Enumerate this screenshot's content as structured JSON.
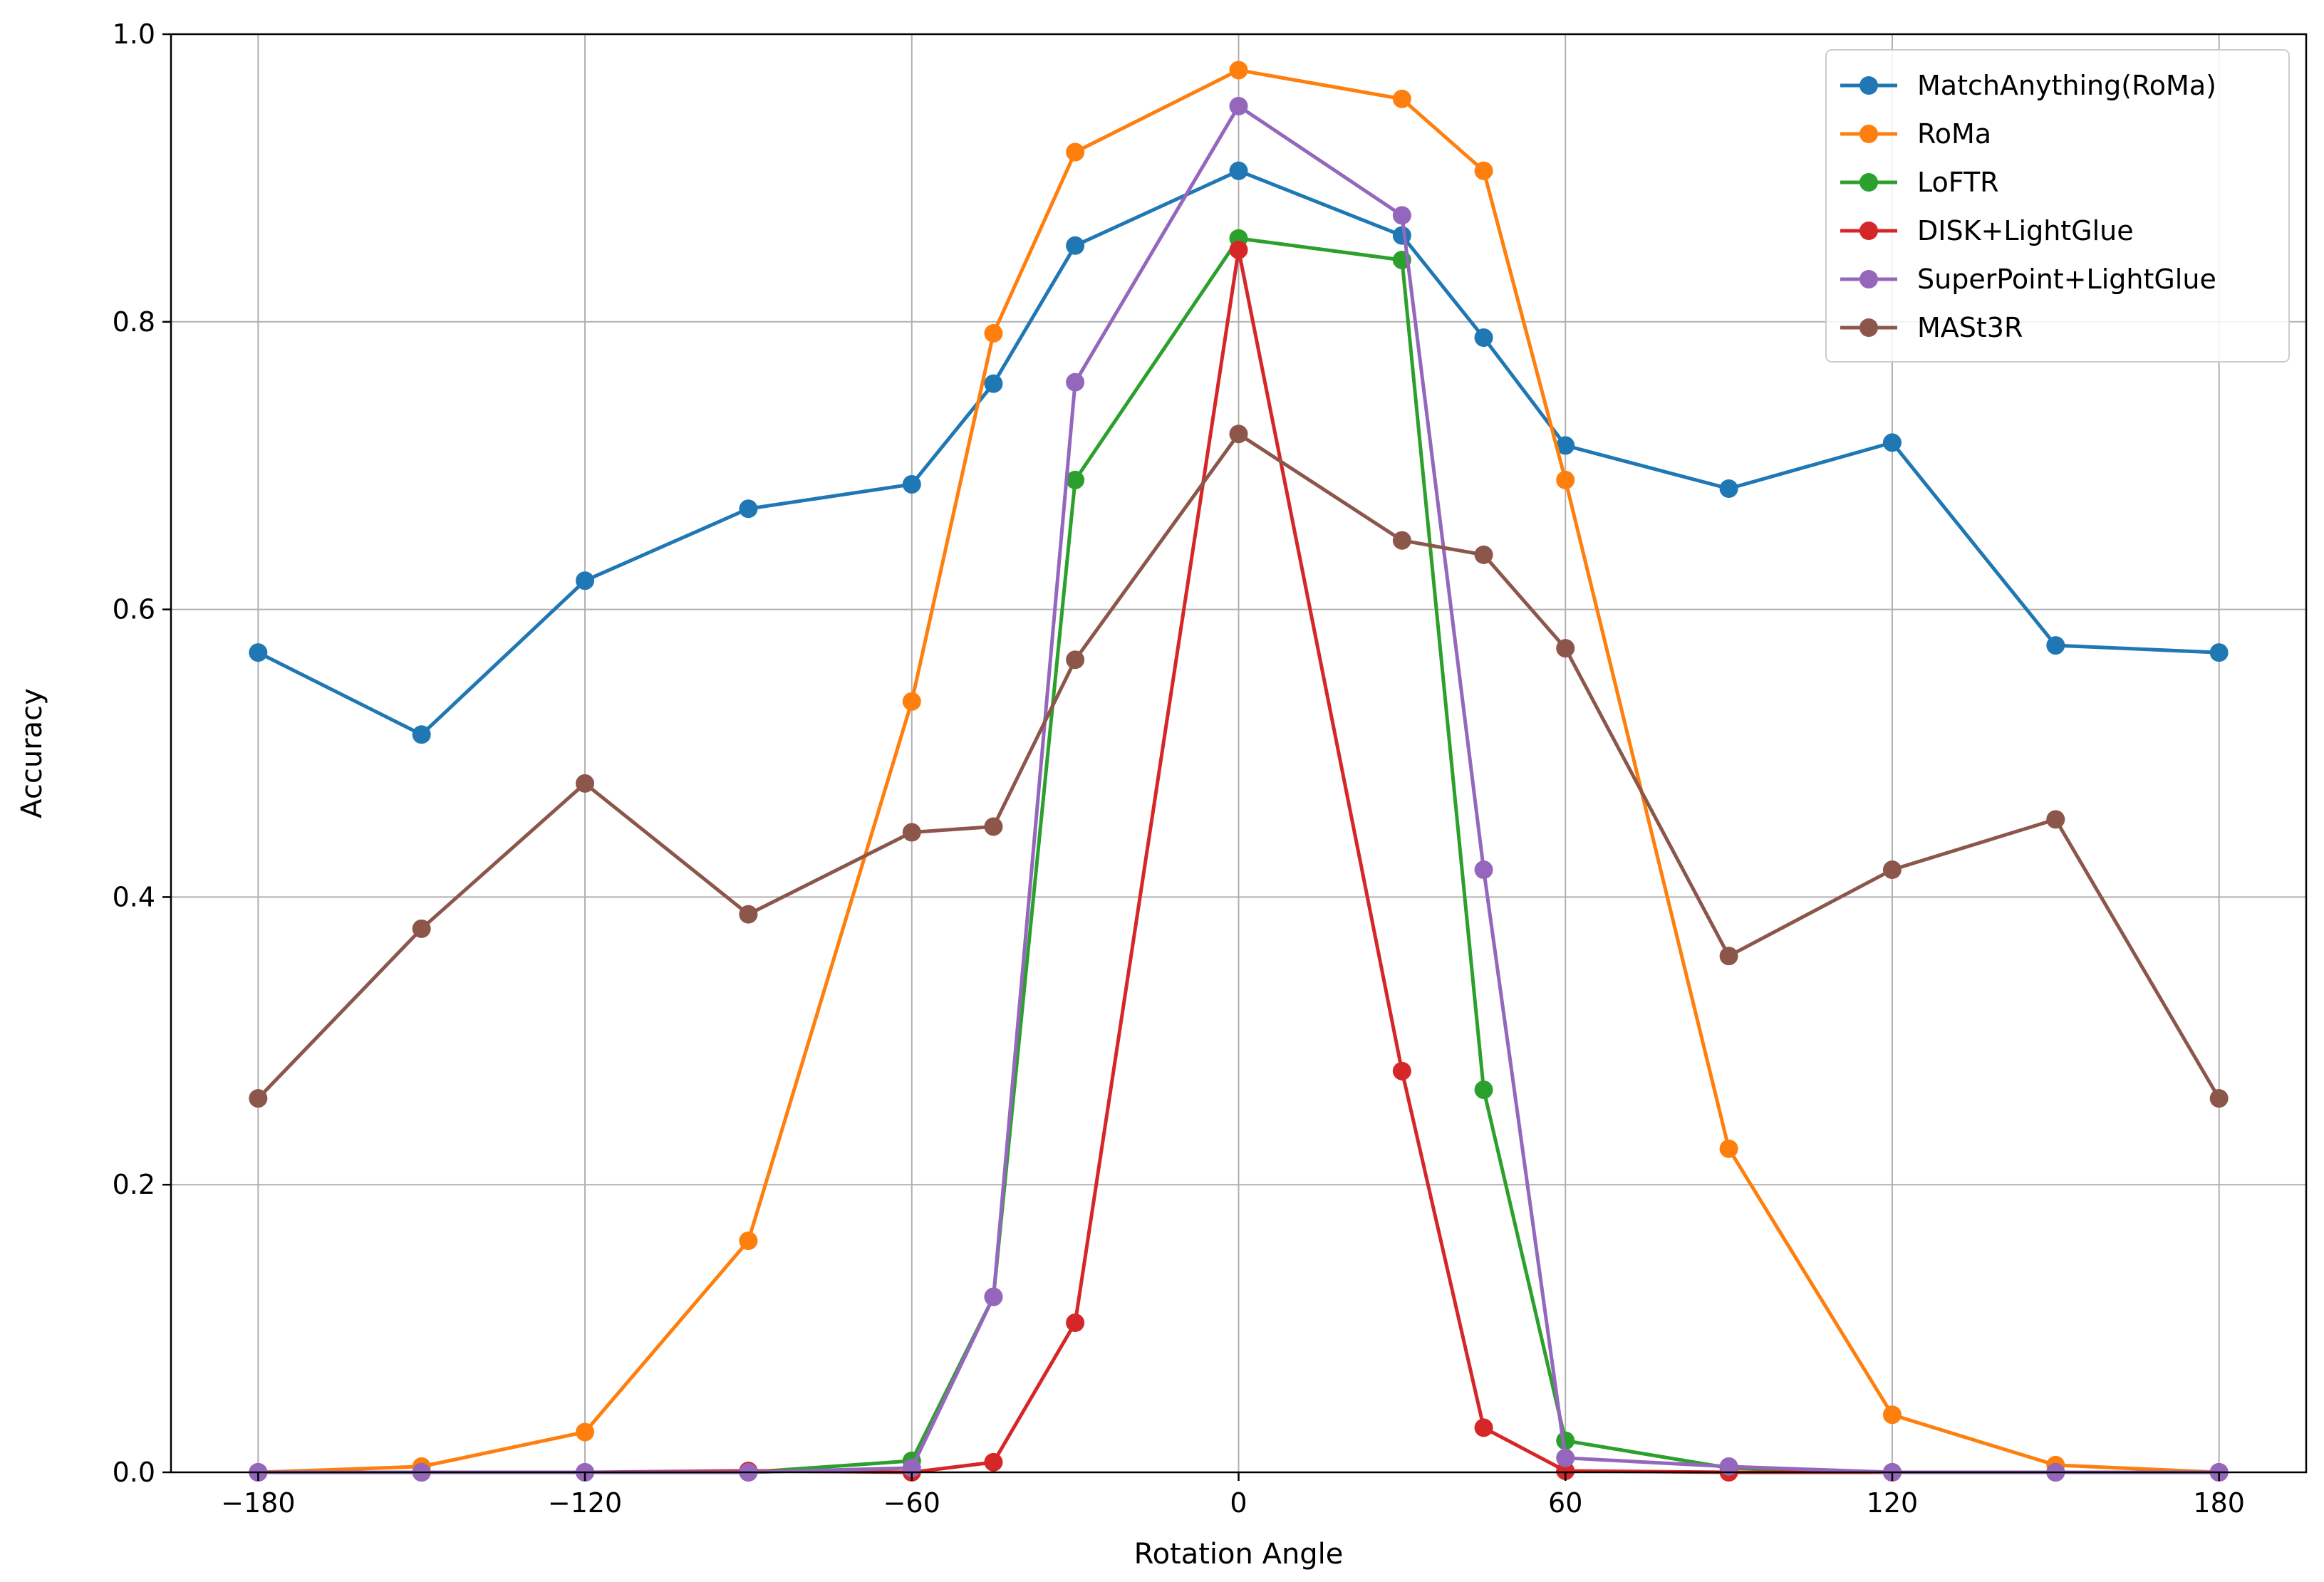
{
  "chart_data": {
    "type": "line",
    "xlabel": "Rotation Angle",
    "ylabel": "Accuracy",
    "xlim": [
      -196,
      196
    ],
    "ylim": [
      0.0,
      1.0
    ],
    "xticks": [
      -180,
      -120,
      -60,
      0,
      60,
      120,
      180
    ],
    "xtick_labels": [
      "−180",
      "−120",
      "−60",
      "0",
      "60",
      "120",
      "180"
    ],
    "yticks": [
      0.0,
      0.2,
      0.4,
      0.6,
      0.8,
      1.0
    ],
    "ytick_labels": [
      "0.0",
      "0.2",
      "0.4",
      "0.6",
      "0.8",
      "1.0"
    ],
    "grid": true,
    "legend_position": "top-right",
    "series": [
      {
        "name": "MatchAnything(RoMa)",
        "color": "#1f77b4",
        "x": [
          -180,
          -150,
          -120,
          -90,
          -60,
          -45,
          -30,
          0,
          30,
          45,
          60,
          90,
          120,
          150,
          180
        ],
        "y": [
          0.57,
          0.513,
          0.62,
          0.67,
          0.687,
          0.757,
          0.853,
          0.905,
          0.86,
          0.789,
          0.714,
          0.684,
          0.716,
          0.575,
          0.57
        ]
      },
      {
        "name": "RoMa",
        "color": "#ff7f0e",
        "x": [
          -180,
          -150,
          -120,
          -90,
          -60,
          -45,
          -30,
          0,
          30,
          45,
          60,
          90,
          120,
          150,
          180
        ],
        "y": [
          0.0,
          0.004,
          0.028,
          0.161,
          0.536,
          0.792,
          0.918,
          0.975,
          0.955,
          0.905,
          0.69,
          0.225,
          0.04,
          0.005,
          0.0
        ]
      },
      {
        "name": "LoFTR",
        "color": "#2ca02c",
        "x": [
          -180,
          -150,
          -120,
          -90,
          -60,
          -45,
          -30,
          0,
          30,
          45,
          60,
          90,
          120,
          150,
          180
        ],
        "y": [
          0.0,
          0.0,
          0.0,
          0.0,
          0.008,
          0.122,
          0.69,
          0.858,
          0.843,
          0.266,
          0.022,
          0.003,
          0.0,
          0.0,
          0.0
        ]
      },
      {
        "name": "DISK+LightGlue",
        "color": "#d62728",
        "x": [
          -180,
          -150,
          -120,
          -90,
          -60,
          -45,
          -30,
          0,
          30,
          45,
          60,
          90,
          120,
          150,
          180
        ],
        "y": [
          0.0,
          0.0,
          0.0,
          0.001,
          0.0,
          0.007,
          0.104,
          0.85,
          0.279,
          0.031,
          0.001,
          0.0,
          0.0,
          0.0,
          0.0
        ]
      },
      {
        "name": "SuperPoint+LightGlue",
        "color": "#9467bd",
        "x": [
          -180,
          -150,
          -120,
          -90,
          -60,
          -45,
          -30,
          0,
          30,
          45,
          60,
          90,
          120,
          150,
          180
        ],
        "y": [
          0.0,
          0.0,
          0.0,
          0.0,
          0.003,
          0.122,
          0.758,
          0.95,
          0.874,
          0.419,
          0.01,
          0.004,
          0.0,
          0.0,
          0.0
        ]
      },
      {
        "name": "MASt3R",
        "color": "#8c564b",
        "x": [
          -180,
          -150,
          -120,
          -90,
          -60,
          -45,
          -30,
          0,
          30,
          45,
          60,
          90,
          120,
          150,
          180
        ],
        "y": [
          0.26,
          0.378,
          0.479,
          0.388,
          0.445,
          0.449,
          0.565,
          0.722,
          0.648,
          0.638,
          0.573,
          0.359,
          0.419,
          0.454,
          0.26
        ]
      }
    ]
  }
}
